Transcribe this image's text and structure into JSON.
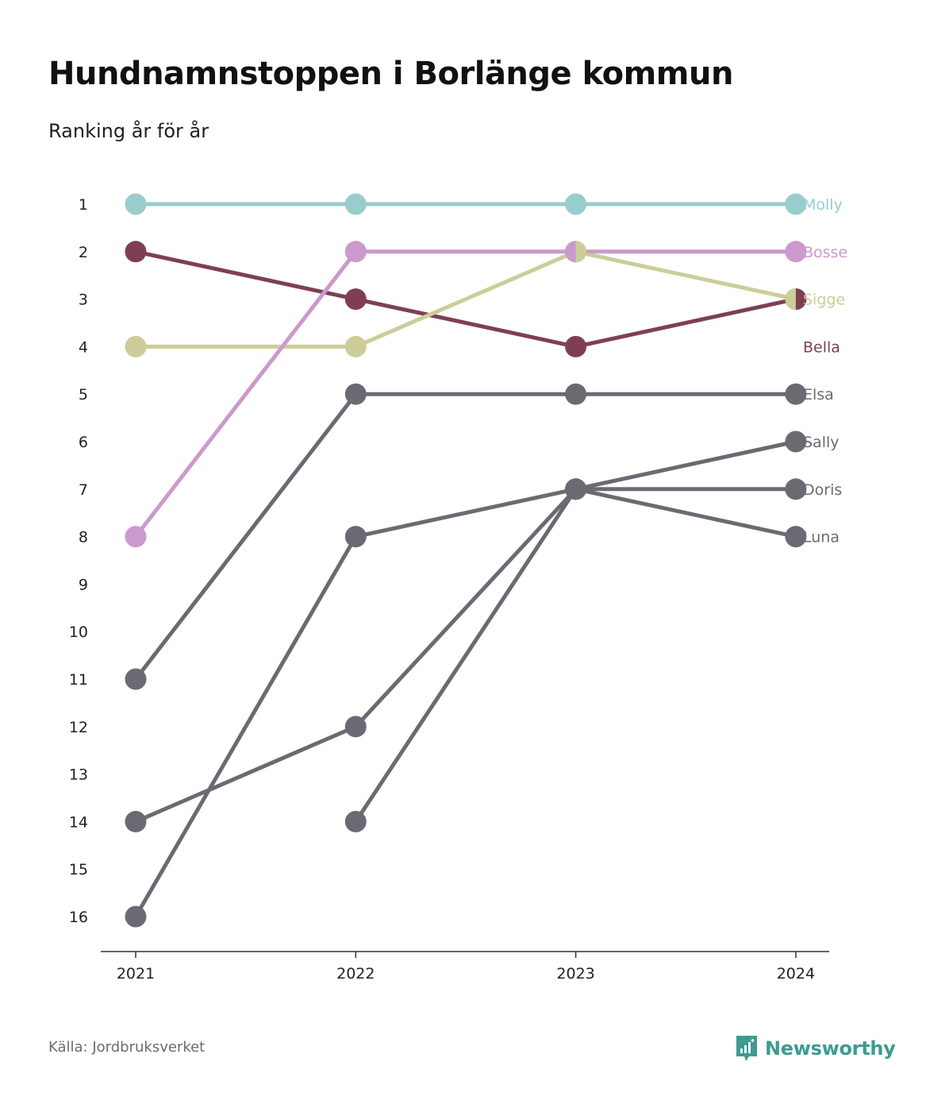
{
  "title": "Hundnamnstoppen i Borlänge kommun",
  "subtitle": "Ranking år för år",
  "footer": {
    "source": "Källa: Jordbruksverket",
    "brand": "Newsworthy",
    "brand_icon": "newsworthy-logo-icon",
    "brand_color": "#3f9a91"
  },
  "chart_data": {
    "type": "line",
    "chart_kind": "bump",
    "x": [
      "2021",
      "2022",
      "2023",
      "2024"
    ],
    "y_ticks": [
      1,
      2,
      3,
      4,
      5,
      6,
      7,
      8,
      9,
      10,
      11,
      12,
      13,
      14,
      15,
      16
    ],
    "y_inverted": true,
    "ylim": [
      1,
      16
    ],
    "grid": false,
    "legend": "end-labels",
    "series": [
      {
        "name": "Luna",
        "color": "#6b6a72",
        "values": [
          14,
          12,
          7,
          8
        ]
      },
      {
        "name": "Doris",
        "color": "#6b6a72",
        "values": [
          null,
          14,
          7,
          7
        ]
      },
      {
        "name": "Sally",
        "color": "#6b6a72",
        "values": [
          16,
          8,
          7,
          6
        ]
      },
      {
        "name": "Elsa",
        "color": "#6b6a72",
        "values": [
          11,
          5,
          5,
          5
        ]
      },
      {
        "name": "Bella",
        "color": "#7e3f54",
        "values": [
          2,
          3,
          4,
          3
        ]
      },
      {
        "name": "Sigge",
        "color": "#cccd98",
        "values": [
          4,
          4,
          2,
          3
        ]
      },
      {
        "name": "Bosse",
        "color": "#cc99cc",
        "values": [
          8,
          2,
          2,
          2
        ]
      },
      {
        "name": "Molly",
        "color": "#99cccc",
        "values": [
          1,
          1,
          1,
          1
        ]
      }
    ]
  }
}
